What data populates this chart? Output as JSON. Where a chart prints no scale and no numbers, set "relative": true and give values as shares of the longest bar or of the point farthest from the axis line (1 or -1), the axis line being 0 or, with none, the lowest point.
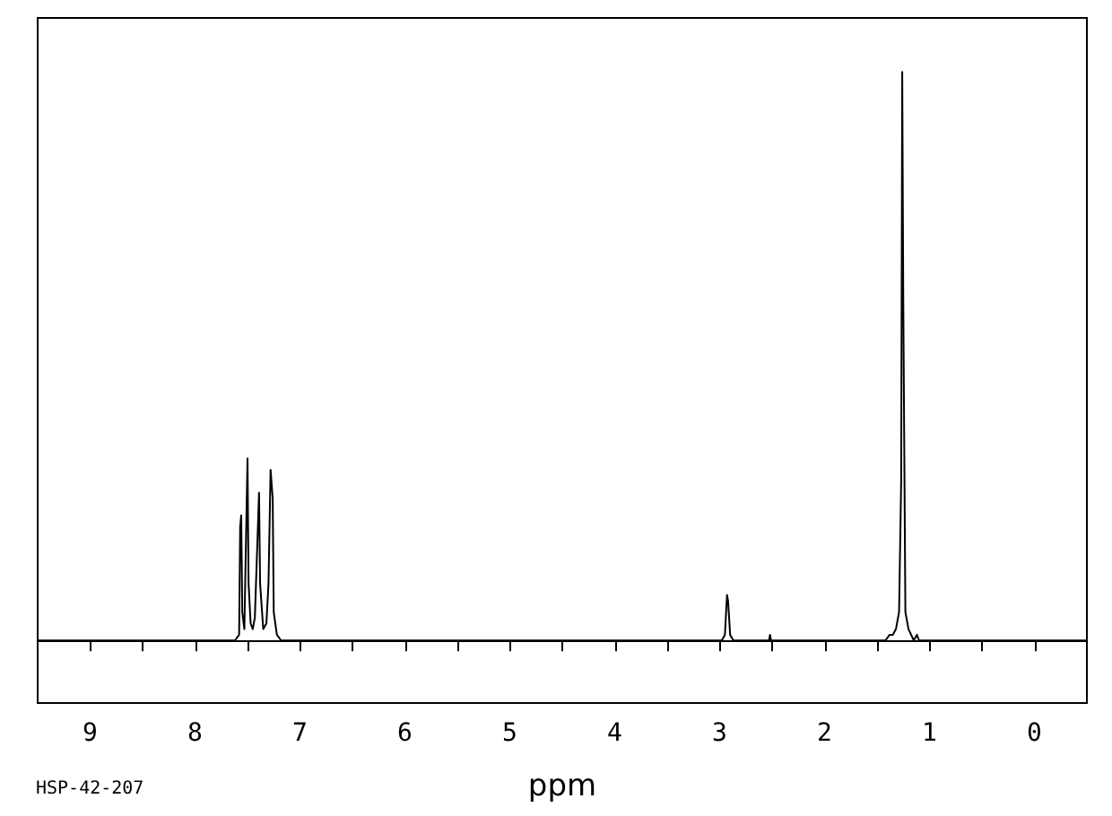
{
  "chart_data": {
    "type": "line",
    "relative": true,
    "xlabel": "ppm",
    "annotations": [
      "HSP-42-207"
    ],
    "xlim": [
      9.5,
      -0.5
    ],
    "xticks": [
      9,
      {
        "value": 8.5,
        "label": null
      },
      8,
      {
        "value": 7.5,
        "label": null
      },
      7,
      {
        "value": 6.5,
        "label": null
      },
      6,
      {
        "value": 5.5,
        "label": null
      },
      5,
      {
        "value": 4.5,
        "label": null
      },
      4,
      {
        "value": 3.5,
        "label": null
      },
      3,
      {
        "value": 2.5,
        "label": null
      },
      2,
      {
        "value": 1.5,
        "label": null
      },
      1,
      {
        "value": 0.5,
        "label": null
      },
      0
    ],
    "series": [
      {
        "color": "#000000",
        "x": [
          9.5,
          7.62,
          7.58,
          7.57,
          7.56,
          7.55,
          7.53,
          7.5,
          7.49,
          7.47,
          7.45,
          7.43,
          7.41,
          7.39,
          7.38,
          7.35,
          7.32,
          7.3,
          7.28,
          7.27,
          7.26,
          7.25,
          7.22,
          7.18,
          2.98,
          2.95,
          2.93,
          2.92,
          2.9,
          2.87,
          2.53,
          2.52,
          2.51,
          1.42,
          1.38,
          1.35,
          1.32,
          1.29,
          1.27,
          1.26,
          1.25,
          1.23,
          1.2,
          1.15,
          1.12,
          1.1,
          -0.5
        ],
        "values": [
          0,
          0,
          0.01,
          0.2,
          0.22,
          0.05,
          0.02,
          0.32,
          0.1,
          0.03,
          0.02,
          0.04,
          0.15,
          0.26,
          0.1,
          0.02,
          0.03,
          0.1,
          0.3,
          0.3,
          0.25,
          0.05,
          0.01,
          0,
          0,
          0.01,
          0.08,
          0.07,
          0.01,
          0,
          0,
          0.01,
          0,
          0,
          0.01,
          0.01,
          0.02,
          0.05,
          0.28,
          1,
          0.6,
          0.05,
          0.02,
          0,
          0.01,
          0,
          0
        ]
      }
    ]
  }
}
